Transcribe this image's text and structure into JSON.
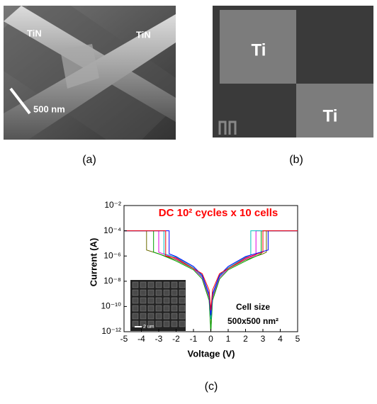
{
  "panels": {
    "a": {
      "label": "(a)",
      "texts": [
        "TiN",
        "TiN",
        "500 nm"
      ]
    },
    "b": {
      "label": "(b)",
      "texts": [
        "Ti",
        "Ti"
      ]
    },
    "c": {
      "label": "(c)"
    }
  },
  "chart_data": {
    "type": "line",
    "title": "DC 10² cycles x 10 cells",
    "xlabel": "Voltage (V)",
    "ylabel": "Current (A)",
    "annotations": [
      "Cell size",
      "500x500 nm²"
    ],
    "inset_label": "2 um",
    "xlim": [
      -5,
      5
    ],
    "xticks": [
      -5,
      -4,
      -3,
      -2,
      -1,
      0,
      1,
      2,
      3,
      4,
      5
    ],
    "ylim": [
      1e-12,
      0.01
    ],
    "yscale": "log",
    "yticks": [
      {
        "value": 1e-12,
        "label": "10⁻¹²"
      },
      {
        "value": 1e-10,
        "label": "10⁻¹⁰"
      },
      {
        "value": 1e-08,
        "label": "10⁻⁸"
      },
      {
        "value": 1e-06,
        "label": "10⁻⁶"
      },
      {
        "value": 0.0001,
        "label": "10⁻⁴"
      },
      {
        "value": 0.01,
        "label": "10⁻²"
      }
    ],
    "series": [
      {
        "color": "#6b6b00",
        "x": [
          -5,
          -3.7,
          -3.7,
          -3,
          -2,
          -1,
          -0.5,
          -0.1,
          0,
          0.1,
          0.5,
          1,
          2,
          3,
          3.2,
          3.2,
          5
        ],
        "values": [
          0.0001,
          0.0001,
          3e-06,
          1.5e-06,
          5e-07,
          1e-07,
          2e-08,
          5e-10,
          1e-12,
          5e-10,
          2e-08,
          1e-07,
          5e-07,
          1.5e-06,
          2e-06,
          0.0001,
          0.0001
        ]
      },
      {
        "color": "#00a000",
        "x": [
          -5,
          -3.3,
          -3.3,
          -3,
          -2,
          -1,
          -0.5,
          -0.1,
          0,
          0.1,
          0.5,
          1,
          2,
          2.9,
          2.9,
          5
        ],
        "values": [
          0.0001,
          0.0001,
          2e-06,
          1.5e-06,
          4e-07,
          8e-08,
          1.5e-08,
          3e-10,
          1e-12,
          3e-10,
          1.5e-08,
          8e-08,
          4e-07,
          1.5e-06,
          0.0001,
          0.0001
        ]
      },
      {
        "color": "#e000e0",
        "x": [
          -5,
          -3,
          -3,
          -2,
          -1,
          -0.5,
          -0.1,
          0,
          0.1,
          0.5,
          1,
          2,
          2.6,
          2.6,
          5
        ],
        "values": [
          0.0001,
          0.0001,
          2e-06,
          6e-07,
          1e-07,
          2e-08,
          6e-10,
          1e-11,
          6e-10,
          2e-08,
          1e-07,
          6e-07,
          1.2e-06,
          0.0001,
          0.0001
        ]
      },
      {
        "color": "#00c0c0",
        "x": [
          -5,
          -2.7,
          -2.7,
          -2,
          -1,
          -0.5,
          -0.1,
          0,
          0.1,
          0.5,
          1,
          2,
          2.3,
          2.3,
          5
        ],
        "values": [
          0.0001,
          0.0001,
          1.5e-06,
          8e-07,
          1.2e-07,
          2.5e-08,
          8e-10,
          1e-11,
          8e-10,
          2.5e-08,
          1.2e-07,
          8e-07,
          1.2e-06,
          0.0001,
          0.0001
        ]
      },
      {
        "color": "#0000ff",
        "x": [
          -5,
          -2.4,
          -2.4,
          -2,
          -1,
          -0.5,
          -0.1,
          0,
          0.1,
          0.5,
          1,
          2,
          3.3,
          3.3,
          5
        ],
        "values": [
          0.0001,
          0.0001,
          1.5e-06,
          9e-07,
          1.5e-07,
          3e-08,
          1e-09,
          2e-11,
          1e-09,
          3e-08,
          1.5e-07,
          9e-07,
          3e-06,
          0.0001,
          0.0001
        ]
      },
      {
        "color": "#ff0000",
        "x": [
          -5,
          -2.6,
          -2.6,
          -2,
          -1,
          -0.5,
          -0.1,
          0,
          0.1,
          0.5,
          1,
          2,
          3,
          3,
          5
        ],
        "values": [
          0.0001,
          0.0001,
          1e-06,
          7e-07,
          1e-07,
          4e-08,
          2e-09,
          5e-11,
          2e-09,
          4e-08,
          1e-07,
          7e-07,
          2e-06,
          0.0001,
          0.0001
        ]
      }
    ]
  }
}
